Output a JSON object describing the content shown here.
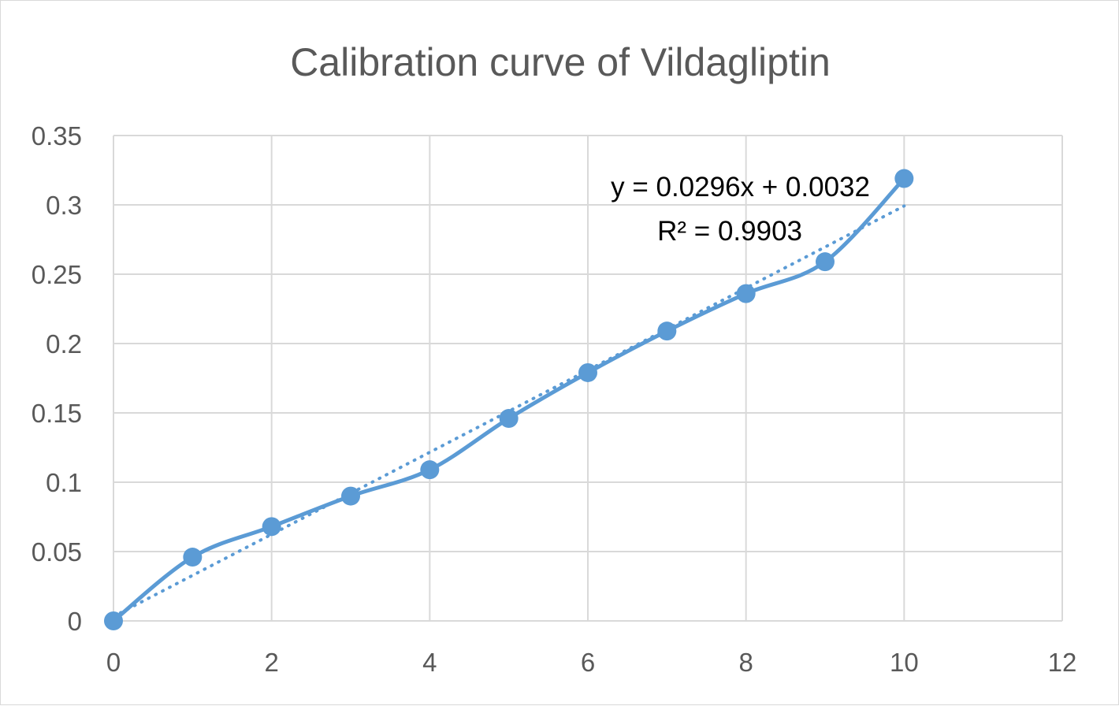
{
  "chart_data": {
    "type": "scatter",
    "title": "Calibration curve of Vildagliptin",
    "xlabel": "",
    "ylabel": "",
    "xlim": [
      0,
      12
    ],
    "ylim": [
      0,
      0.35
    ],
    "x_ticks": [
      "0",
      "2",
      "4",
      "6",
      "8",
      "10",
      "12"
    ],
    "y_ticks": [
      "0",
      "0.05",
      "0.1",
      "0.15",
      "0.2",
      "0.25",
      "0.3",
      "0.35"
    ],
    "grid": true,
    "legend": "none",
    "series": [
      {
        "x": [
          0,
          1,
          2,
          3,
          4,
          5,
          6,
          7,
          8,
          9,
          10
        ],
        "y": [
          0.0,
          0.046,
          0.068,
          0.09,
          0.109,
          0.146,
          0.179,
          0.209,
          0.236,
          0.259,
          0.319
        ],
        "line": "smooth",
        "marker": "circle",
        "color": "#5b9bd5"
      }
    ],
    "trendline": {
      "type": "linear",
      "slope": 0.0296,
      "intercept": 0.0032,
      "x_range": [
        0,
        10
      ],
      "style": "dotted",
      "color": "#5b9bd5"
    },
    "annotations": {
      "equation": "y = 0.0296x + 0.0032",
      "r_squared": "R² = 0.9903"
    },
    "colors": {
      "grid": "#d9d9d9",
      "text": "#595959",
      "axis": "#d9d9d9"
    }
  }
}
